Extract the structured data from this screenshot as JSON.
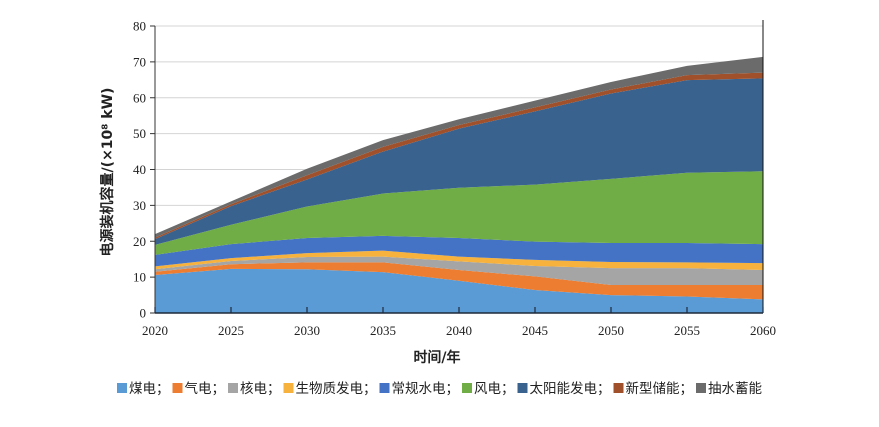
{
  "chart_data": {
    "type": "area",
    "stacked": true,
    "title": "",
    "xlabel": "时间/年",
    "ylabel": "电源装机容量/(×10⁸ kW)",
    "x": [
      2020,
      2025,
      2030,
      2035,
      2040,
      2045,
      2050,
      2055,
      2060
    ],
    "xlim": [
      2020,
      2060
    ],
    "ylim": [
      0,
      80
    ],
    "xticks": [
      "2020",
      "2025",
      "2030",
      "2035",
      "2040",
      "2045",
      "2050",
      "2055",
      "2060"
    ],
    "yticks": [
      "0",
      "10",
      "20",
      "30",
      "40",
      "50",
      "60",
      "70",
      "80"
    ],
    "grid": "horizontal",
    "legend_position": "bottom",
    "series": [
      {
        "name": "煤电；",
        "color": "#5b9bd5",
        "values": [
          10.6,
          12.3,
          12.2,
          11.4,
          9.0,
          6.4,
          5.0,
          4.6,
          3.8
        ]
      },
      {
        "name": "气电；",
        "color": "#ed7d31",
        "values": [
          0.9,
          1.3,
          1.9,
          2.7,
          3.0,
          3.8,
          2.8,
          3.2,
          4.0
        ]
      },
      {
        "name": "核电；",
        "color": "#a5a5a5",
        "values": [
          0.7,
          0.9,
          1.5,
          1.6,
          2.4,
          2.9,
          4.7,
          4.7,
          4.2
        ]
      },
      {
        "name": "生物质发电；",
        "color": "#f6b23c",
        "values": [
          0.8,
          0.8,
          1.1,
          1.7,
          1.3,
          1.7,
          1.7,
          1.6,
          1.9
        ]
      },
      {
        "name": "常规水电；",
        "color": "#4472c4",
        "values": [
          3.2,
          3.9,
          4.2,
          4.1,
          5.2,
          5.1,
          5.3,
          5.4,
          5.3
        ]
      },
      {
        "name": "风电；",
        "color": "#70ad47",
        "values": [
          2.8,
          5.4,
          8.8,
          11.8,
          14.0,
          15.9,
          17.9,
          19.6,
          20.3
        ]
      },
      {
        "name": "太阳能发电；",
        "color": "#39628e",
        "values": [
          1.6,
          5.2,
          7.5,
          11.7,
          16.5,
          20.4,
          23.8,
          25.8,
          25.9
        ]
      },
      {
        "name": "新型储能；",
        "color": "#a0502a",
        "values": [
          0.4,
          0.5,
          1.2,
          1.3,
          1.0,
          1.1,
          1.1,
          1.4,
          1.6
        ]
      },
      {
        "name": "抽水蓄能",
        "color": "#6b6b6b",
        "values": [
          1.0,
          0.8,
          1.8,
          1.9,
          1.6,
          1.9,
          2.1,
          2.6,
          4.4
        ]
      }
    ]
  }
}
